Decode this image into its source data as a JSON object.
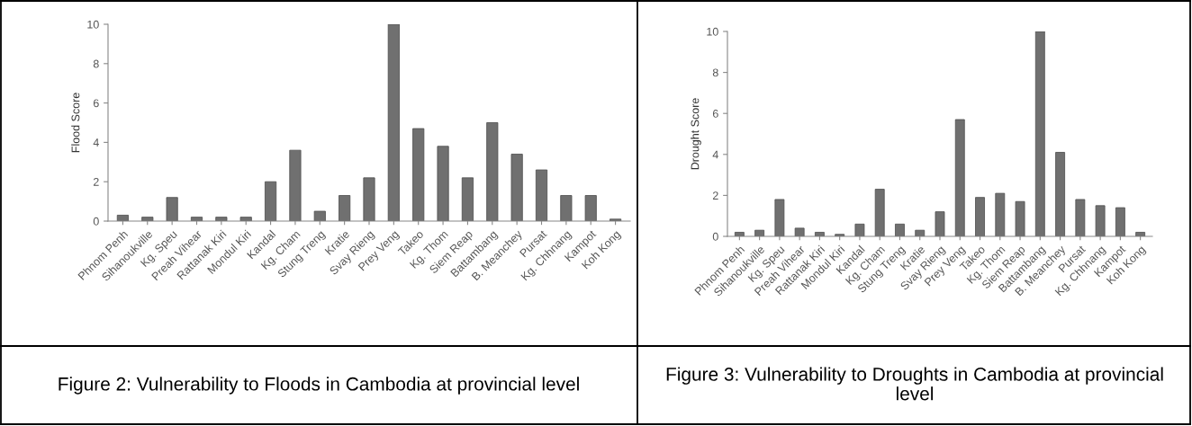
{
  "chart_data": [
    {
      "type": "bar",
      "ylabel": "Flood Score",
      "annotations": [
        "Figure 2: Vulnerability to Floods in Cambodia at provincial level"
      ],
      "categories": [
        "Phnom Penh",
        "Sihanoukville",
        "Kg. Speu",
        "Preah Vihear",
        "Rattanak Kiri",
        "Mondul Kiri",
        "Kandal",
        "Kg. Cham",
        "Stung Treng",
        "Kratie",
        "Svay Rieng",
        "Prey Veng",
        "Takeo",
        "Kg. Thom",
        "Siem Reap",
        "Battambang",
        "B. Meanchey",
        "Pursat",
        "Kg. Chhnang",
        "Kampot",
        "Koh Kong"
      ],
      "values": [
        0.3,
        0.2,
        1.2,
        0.2,
        0.2,
        0.2,
        2.0,
        3.6,
        0.5,
        1.3,
        2.2,
        10,
        4.7,
        3.8,
        2.2,
        5.0,
        3.4,
        2.6,
        1.3,
        1.3,
        0.1
      ],
      "color": "#707070",
      "ylim": [
        0,
        10
      ],
      "yticks": [
        0,
        2,
        4,
        6,
        8,
        10
      ],
      "grid": false
    },
    {
      "type": "bar",
      "ylabel": "Drought Score",
      "annotations": [
        "Figure 3: Vulnerability to Droughts in Cambodia at provincial level"
      ],
      "categories": [
        "Phnom Penh",
        "Sihanoukville",
        "Kg. Speu",
        "Preah Vihear",
        "Rattanak Kiri",
        "Mondul Kiri",
        "Kandal",
        "Kg. Cham",
        "Stung Treng",
        "Kratie",
        "Svay Rieng",
        "Prey Veng",
        "Takeo",
        "Kg. Thom",
        "Siem Reap",
        "Battambang",
        "B. Meanchey",
        "Pursat",
        "Kg. Chhnang",
        "Kampot",
        "Koh Kong"
      ],
      "values": [
        0.2,
        0.3,
        1.8,
        0.4,
        0.2,
        0.1,
        0.6,
        2.3,
        0.6,
        0.3,
        1.2,
        5.7,
        1.9,
        2.1,
        1.7,
        10,
        4.1,
        1.8,
        1.5,
        1.4,
        0.2
      ],
      "color": "#707070",
      "ylim": [
        0,
        10
      ],
      "yticks": [
        0,
        2,
        4,
        6,
        8,
        10
      ],
      "grid": false
    }
  ]
}
